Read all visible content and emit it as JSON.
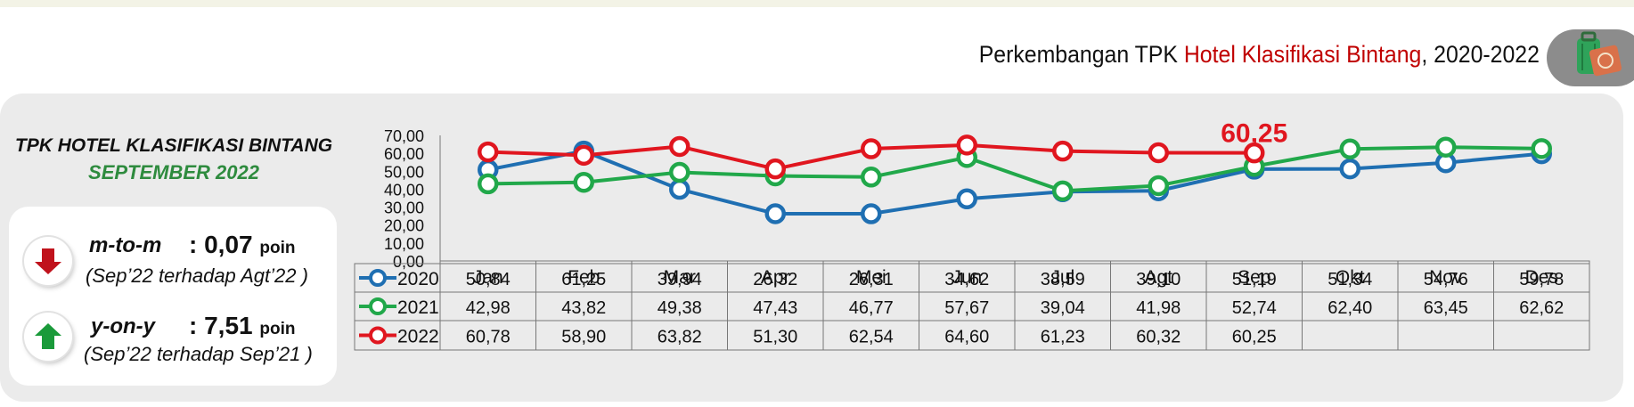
{
  "header": {
    "title_prefix": "Perkembangan TPK ",
    "title_highlight": "Hotel Klasifikasi Bintang",
    "title_suffix": ", 2020-2022",
    "badge_icon": "luggage-passport-icon"
  },
  "sidebar": {
    "title_line1": "TPK HOTEL KLASIFIKASI BINTANG",
    "title_line2": "SEPTEMBER 2022",
    "mtom": {
      "label": "m-to-m",
      "value": ": 0,07",
      "unit": "poin",
      "note": "(Sep’22 terhadap Agt’22 )",
      "icon": "arrow-down-icon",
      "color": "#c0121c"
    },
    "yony": {
      "label": "y-on-y",
      "value": ": 7,51",
      "unit": "poin",
      "note": "(Sep’22 terhadap Sep’21 )",
      "icon": "arrow-up-icon",
      "color": "#1a9a3a"
    }
  },
  "chart_data": {
    "type": "line",
    "categories": [
      "Jan",
      "Feb",
      "Mar",
      "Apr",
      "Mei",
      "Jun",
      "Jul",
      "Agt",
      "Sep",
      "Okt",
      "Nov",
      "Des"
    ],
    "ylim": [
      0,
      70
    ],
    "yticks": [
      "0,00",
      "10,00",
      "20,00",
      "30,00",
      "40,00",
      "50,00",
      "60,00",
      "70,00"
    ],
    "grid": false,
    "annotation": "60,25",
    "series": [
      {
        "name": "2020",
        "color": "#1f6fb2",
        "values": [
          50.84,
          61.25,
          39.94,
          26.32,
          26.31,
          34.62,
          38.59,
          39.1,
          51.19,
          51.34,
          54.76,
          59.78
        ],
        "labels": [
          "50,84",
          "61,25",
          "39,94",
          "26,32",
          "26,31",
          "34,62",
          "38,59",
          "39,10",
          "51,19",
          "51,34",
          "54,76",
          "59,78"
        ]
      },
      {
        "name": "2021",
        "color": "#21a84a",
        "values": [
          42.98,
          43.82,
          49.38,
          47.43,
          46.77,
          57.67,
          39.04,
          41.98,
          52.74,
          62.4,
          63.45,
          62.62
        ],
        "labels": [
          "42,98",
          "43,82",
          "49,38",
          "47,43",
          "46,77",
          "57,67",
          "39,04",
          "41,98",
          "52,74",
          "62,40",
          "63,45",
          "62,62"
        ]
      },
      {
        "name": "2022",
        "color": "#e0161f",
        "values": [
          60.78,
          58.9,
          63.82,
          51.3,
          62.54,
          64.6,
          61.23,
          60.32,
          60.25,
          null,
          null,
          null
        ],
        "labels": [
          "60,78",
          "58,90",
          "63,82",
          "51,30",
          "62,54",
          "64,60",
          "61,23",
          "60,32",
          "60,25",
          "",
          "",
          ""
        ]
      }
    ]
  }
}
